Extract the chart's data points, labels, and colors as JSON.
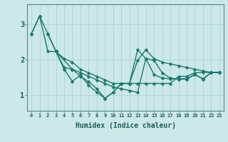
{
  "title": "",
  "xlabel": "Humidex (Indice chaleur)",
  "ylabel": "",
  "bg_color": "#cce8e8",
  "line_color": "#1a7a6e",
  "grid_color": "#add4d4",
  "series": {
    "line1": {
      "x": [
        0,
        1,
        2,
        3,
        4,
        5,
        6,
        7,
        8,
        9,
        10,
        11,
        12,
        13,
        14,
        15,
        16,
        17,
        18,
        19,
        20,
        21,
        22,
        23
      ],
      "y": [
        2.72,
        3.22,
        2.72,
        2.22,
        1.72,
        1.38,
        1.55,
        1.27,
        1.07,
        0.9,
        1.07,
        1.32,
        1.32,
        1.97,
        2.27,
        2.02,
        1.92,
        1.87,
        1.82,
        1.77,
        1.72,
        1.67,
        1.63,
        1.63
      ]
    },
    "line2": {
      "x": [
        2,
        3,
        4,
        5,
        6,
        7,
        8,
        9,
        10,
        11,
        12,
        13,
        14,
        15,
        16,
        17,
        18,
        19,
        20,
        21,
        22,
        23
      ],
      "y": [
        2.72,
        2.22,
        1.77,
        1.72,
        1.62,
        1.52,
        1.42,
        1.32,
        1.22,
        1.17,
        1.12,
        1.07,
        2.02,
        1.97,
        1.62,
        1.47,
        1.44,
        1.44,
        1.57,
        1.44,
        1.63,
        1.63
      ]
    },
    "line3": {
      "x": [
        0,
        1,
        2,
        3,
        4,
        5,
        6,
        7,
        8,
        9,
        10,
        11,
        12,
        13,
        14,
        15,
        16,
        17,
        18,
        19,
        20,
        21,
        22,
        23
      ],
      "y": [
        2.72,
        3.22,
        2.22,
        2.22,
        2.02,
        1.92,
        1.72,
        1.62,
        1.52,
        1.42,
        1.32,
        1.32,
        1.32,
        1.32,
        1.32,
        1.32,
        1.32,
        1.32,
        1.52,
        1.52,
        1.62,
        1.63,
        1.63,
        1.63
      ]
    },
    "line4": {
      "x": [
        3,
        5,
        6,
        7,
        8,
        9,
        10,
        11,
        12,
        13,
        14,
        15,
        16,
        17,
        18,
        19,
        20,
        21,
        22,
        23
      ],
      "y": [
        2.22,
        1.72,
        1.52,
        1.37,
        1.17,
        0.9,
        1.07,
        1.32,
        1.32,
        2.27,
        2.02,
        1.57,
        1.47,
        1.45,
        1.45,
        1.45,
        1.57,
        1.45,
        1.63,
        1.63
      ]
    }
  },
  "xlim": [
    -0.5,
    23.5
  ],
  "ylim": [
    0.55,
    3.55
  ],
  "yticks": [
    1,
    2,
    3
  ],
  "xticks": [
    0,
    1,
    2,
    3,
    4,
    5,
    6,
    7,
    8,
    9,
    10,
    11,
    12,
    13,
    14,
    15,
    16,
    17,
    18,
    19,
    20,
    21,
    22,
    23
  ],
  "xtick_labels": [
    "0",
    "1",
    "2",
    "3",
    "4",
    "5",
    "6",
    "7",
    "8",
    "9",
    "10",
    "11",
    "12",
    "13",
    "14",
    "15",
    "16",
    "17",
    "18",
    "19",
    "20",
    "21",
    "22",
    "23"
  ],
  "marker": "D",
  "markersize": 2.5,
  "linewidth": 1.0
}
